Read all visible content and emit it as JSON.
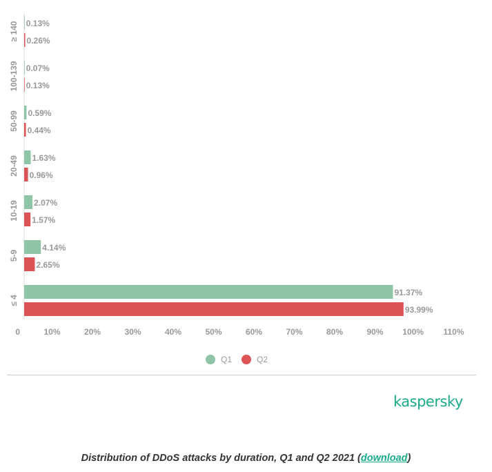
{
  "chart_data": {
    "type": "bar",
    "orientation": "horizontal",
    "categories": [
      "≥ 140",
      "100-139",
      "50-99",
      "20-49",
      "10-19",
      "5-9",
      "≤ 4"
    ],
    "series": [
      {
        "name": "Q1",
        "color": "#8fc4a7",
        "values": [
          0.13,
          0.07,
          0.59,
          1.63,
          2.07,
          4.14,
          91.37
        ],
        "labels": [
          "0.13%",
          "0.07%",
          "0.59%",
          "1.63%",
          "2.07%",
          "4.14%",
          "91.37%"
        ]
      },
      {
        "name": "Q2",
        "color": "#dd5457",
        "values": [
          0.26,
          0.13,
          0.44,
          0.96,
          1.57,
          2.65,
          93.99
        ],
        "labels": [
          "0.26%",
          "0.13%",
          "0.44%",
          "0.96%",
          "1.57%",
          "2.65%",
          "93.99%"
        ]
      }
    ],
    "xlim": [
      0,
      110
    ],
    "xticks": [
      0,
      10,
      20,
      30,
      40,
      50,
      60,
      70,
      80,
      90,
      100,
      110
    ],
    "xtick_labels": [
      "0",
      "10%",
      "20%",
      "30%",
      "40%",
      "50%",
      "60%",
      "70%",
      "80%",
      "90%",
      "100%",
      "110%"
    ],
    "legend": "bottom-center"
  },
  "logo": "kaspersky",
  "caption": {
    "text": "Distribution of DDoS attacks by duration, Q1 and Q2 2021 (",
    "link": "download",
    "end": ")"
  }
}
